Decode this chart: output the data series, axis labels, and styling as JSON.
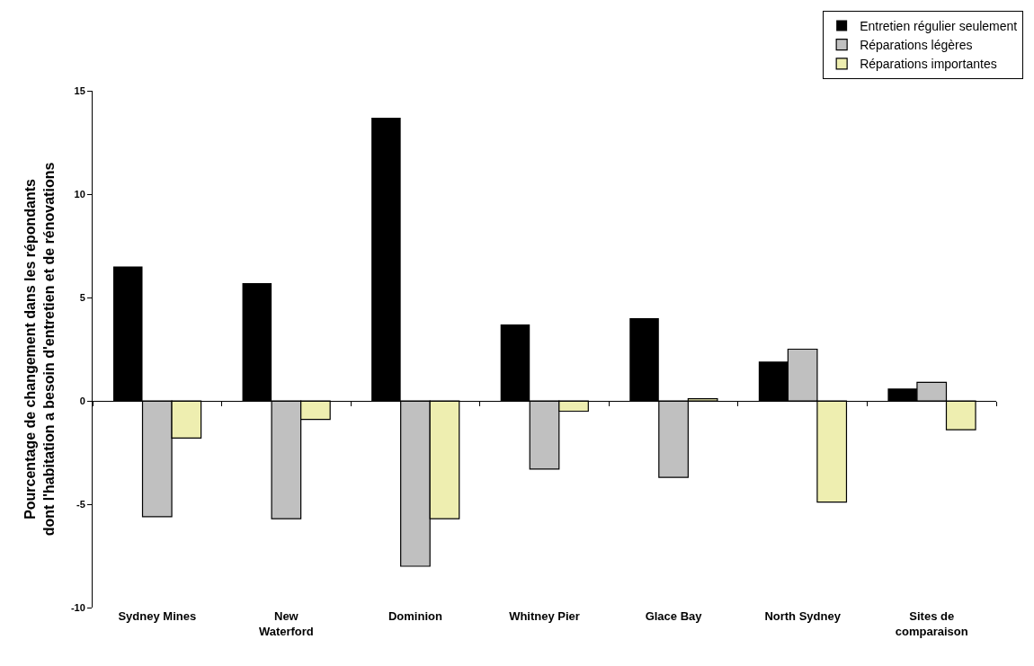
{
  "chart_data": {
    "type": "bar",
    "ylabel": "Pourcentage de changement dans les répondants dont l'habitation a besoin d'entretien et de rénovations",
    "categories": [
      "Sydney Mines",
      "New Waterford",
      "Dominion",
      "Whitney Pier",
      "Glace Bay",
      "North Sydney",
      "Sites de comparaison"
    ],
    "series": [
      {
        "name": "Entretien régulier seulement",
        "color": "#000000",
        "values": [
          6.5,
          5.7,
          13.7,
          3.7,
          4.0,
          1.9,
          0.6
        ]
      },
      {
        "name": "Réparations légères",
        "color": "#c0c0c0",
        "values": [
          -5.6,
          -5.7,
          -8.0,
          -3.3,
          -3.7,
          2.5,
          0.9
        ]
      },
      {
        "name": "Réparations importantes",
        "color": "#eeeeb0",
        "values": [
          -1.8,
          -0.9,
          -5.7,
          -0.5,
          0.1,
          -4.9,
          -1.4
        ]
      }
    ],
    "ylim": [
      -10,
      15
    ],
    "yticks": [
      -10,
      -5,
      0,
      5,
      10,
      15
    ],
    "legend": "top right"
  }
}
